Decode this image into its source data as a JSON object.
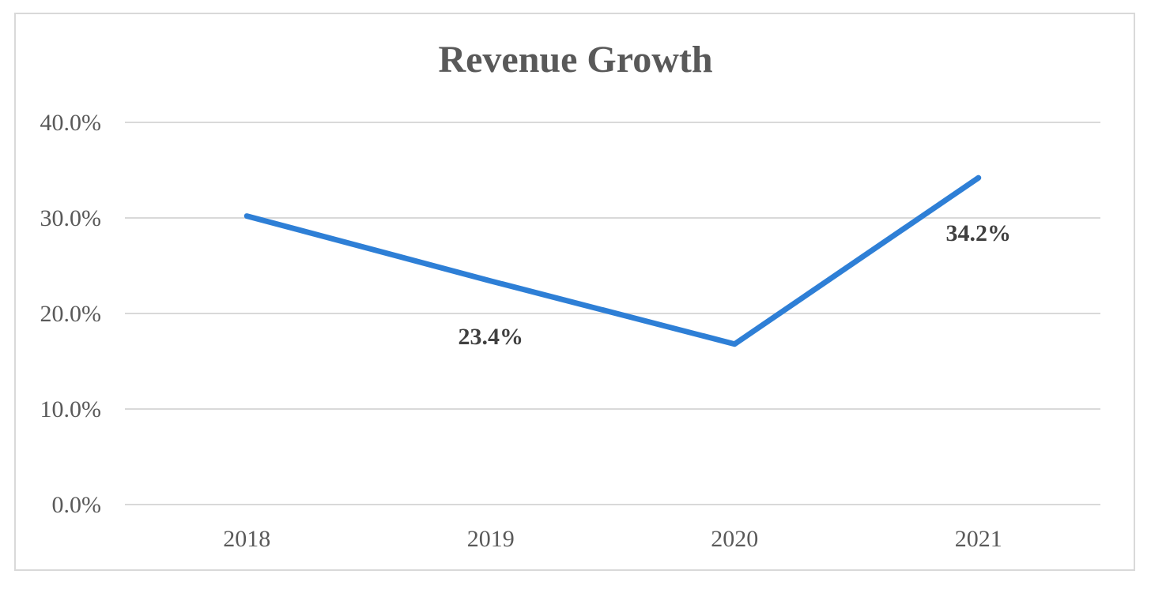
{
  "chart_data": {
    "type": "line",
    "title": "Revenue Growth",
    "xlabel": "",
    "ylabel": "",
    "categories": [
      "2018",
      "2019",
      "2020",
      "2021"
    ],
    "series": [
      {
        "values": [
          30.2,
          23.4,
          16.8,
          34.2
        ],
        "color": "#2e7fd6"
      }
    ],
    "data_labels": [
      {
        "index": 1,
        "text": "23.4%"
      },
      {
        "index": 3,
        "text": "34.2%"
      }
    ],
    "ylim": [
      0,
      40
    ],
    "yticks": [
      0,
      10,
      20,
      30,
      40
    ],
    "ytick_labels": [
      "0.0%",
      "10.0%",
      "20.0%",
      "30.0%",
      "40.0%"
    ],
    "grid": true,
    "legend": "none"
  },
  "colors": {
    "frame_border": "#d9d9d9",
    "gridline": "#d9d9d9",
    "text": "#595959",
    "label_text": "#404040",
    "line": "#2e7fd6"
  }
}
